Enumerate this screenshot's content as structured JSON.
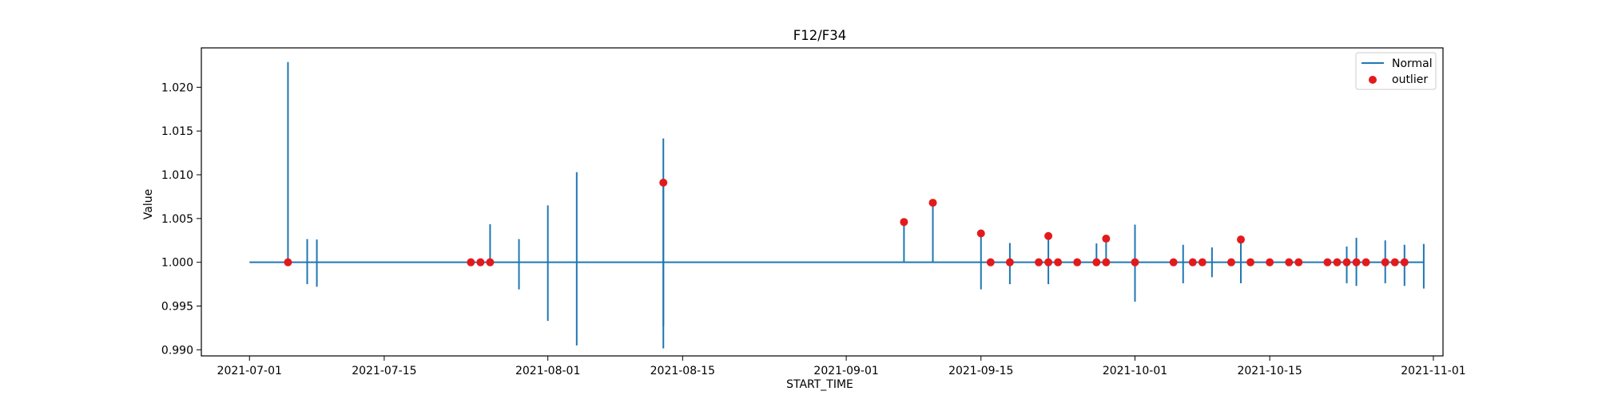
{
  "chart_data": {
    "type": "line",
    "title": "F12/F34",
    "xlabel": "START_TIME",
    "ylabel": "Value",
    "xlim": [
      "2021-06-26",
      "2021-11-02"
    ],
    "ylim": [
      0.9893,
      1.0245
    ],
    "x_ticks": [
      "2021-07-01",
      "2021-07-15",
      "2021-08-01",
      "2021-08-15",
      "2021-09-01",
      "2021-09-15",
      "2021-10-01",
      "2021-10-15",
      "2021-11-01"
    ],
    "y_ticks": [
      "0.990",
      "0.995",
      "1.000",
      "1.005",
      "1.010",
      "1.015",
      "1.020"
    ],
    "baseline": {
      "start": "2021-07-01",
      "end": "2021-10-31",
      "value": 1.0
    },
    "legend": {
      "position": "upper right",
      "entries": [
        "Normal",
        "outlier"
      ]
    },
    "colors": {
      "normal": "#1f77b4",
      "outlier": "#e31a1c"
    },
    "series": [
      {
        "name": "Normal",
        "kind": "spikes",
        "points": [
          {
            "x": "2021-07-05",
            "lo": 0.99985,
            "hi": 1.02288
          },
          {
            "x": "2021-07-07",
            "lo": 0.9975,
            "hi": 1.00265
          },
          {
            "x": "2021-07-08",
            "lo": 0.9972,
            "hi": 1.0026
          },
          {
            "x": "2021-07-26",
            "lo": 1.0,
            "hi": 1.00435
          },
          {
            "x": "2021-07-29",
            "lo": 0.9969,
            "hi": 1.00265
          },
          {
            "x": "2021-08-01",
            "lo": 0.9933,
            "hi": 1.0065
          },
          {
            "x": "2021-08-04",
            "lo": 0.9905,
            "hi": 1.0103
          },
          {
            "x": "2021-08-13",
            "lo": 0.99015,
            "hi": 1.01415
          },
          {
            "x": "2021-08-13",
            "lo": 0.9927,
            "hi": 1.009
          },
          {
            "x": "2021-09-07",
            "lo": 1.0,
            "hi": 1.0046
          },
          {
            "x": "2021-09-10",
            "lo": 1.0,
            "hi": 1.0068
          },
          {
            "x": "2021-09-15",
            "lo": 0.9969,
            "hi": 1.0033
          },
          {
            "x": "2021-09-18",
            "lo": 0.9975,
            "hi": 1.0022
          },
          {
            "x": "2021-09-22",
            "lo": 0.9975,
            "hi": 1.003
          },
          {
            "x": "2021-09-27",
            "lo": 1.0,
            "hi": 1.00215
          },
          {
            "x": "2021-09-28",
            "lo": 1.0,
            "hi": 1.0027
          },
          {
            "x": "2021-10-01",
            "lo": 0.9955,
            "hi": 1.0043
          },
          {
            "x": "2021-10-06",
            "lo": 0.9976,
            "hi": 1.002
          },
          {
            "x": "2021-10-09",
            "lo": 0.9983,
            "hi": 1.0017
          },
          {
            "x": "2021-10-12",
            "lo": 0.9976,
            "hi": 1.00265
          },
          {
            "x": "2021-10-23",
            "lo": 0.9976,
            "hi": 1.0018
          },
          {
            "x": "2021-10-24",
            "lo": 0.9973,
            "hi": 1.0028
          },
          {
            "x": "2021-10-27",
            "lo": 0.9976,
            "hi": 1.0025
          },
          {
            "x": "2021-10-29",
            "lo": 0.9973,
            "hi": 1.002
          },
          {
            "x": "2021-10-31",
            "lo": 0.997,
            "hi": 1.0021
          }
        ]
      },
      {
        "name": "outlier",
        "kind": "scatter",
        "points": [
          {
            "x": "2021-07-05",
            "y": 1.0
          },
          {
            "x": "2021-07-24",
            "y": 1.0
          },
          {
            "x": "2021-07-25",
            "y": 1.0
          },
          {
            "x": "2021-07-26",
            "y": 1.0
          },
          {
            "x": "2021-08-13",
            "y": 1.0091
          },
          {
            "x": "2021-09-07",
            "y": 1.0046
          },
          {
            "x": "2021-09-10",
            "y": 1.0068
          },
          {
            "x": "2021-09-15",
            "y": 1.0033
          },
          {
            "x": "2021-09-16",
            "y": 1.0
          },
          {
            "x": "2021-09-18",
            "y": 1.0
          },
          {
            "x": "2021-09-21",
            "y": 1.0
          },
          {
            "x": "2021-09-22",
            "y": 1.0
          },
          {
            "x": "2021-09-22",
            "y": 1.003
          },
          {
            "x": "2021-09-23",
            "y": 1.0
          },
          {
            "x": "2021-09-25",
            "y": 1.0
          },
          {
            "x": "2021-09-27",
            "y": 1.0
          },
          {
            "x": "2021-09-28",
            "y": 1.0027
          },
          {
            "x": "2021-09-28",
            "y": 1.0
          },
          {
            "x": "2021-10-01",
            "y": 1.0
          },
          {
            "x": "2021-10-05",
            "y": 1.0
          },
          {
            "x": "2021-10-07",
            "y": 1.0
          },
          {
            "x": "2021-10-08",
            "y": 1.0
          },
          {
            "x": "2021-10-11",
            "y": 1.0
          },
          {
            "x": "2021-10-12",
            "y": 1.0026
          },
          {
            "x": "2021-10-13",
            "y": 1.0
          },
          {
            "x": "2021-10-15",
            "y": 1.0
          },
          {
            "x": "2021-10-17",
            "y": 1.0
          },
          {
            "x": "2021-10-18",
            "y": 1.0
          },
          {
            "x": "2021-10-21",
            "y": 1.0
          },
          {
            "x": "2021-10-22",
            "y": 1.0
          },
          {
            "x": "2021-10-23",
            "y": 1.0
          },
          {
            "x": "2021-10-24",
            "y": 1.0
          },
          {
            "x": "2021-10-25",
            "y": 1.0
          },
          {
            "x": "2021-10-27",
            "y": 1.0
          },
          {
            "x": "2021-10-28",
            "y": 1.0
          },
          {
            "x": "2021-10-29",
            "y": 1.0
          }
        ]
      }
    ]
  }
}
